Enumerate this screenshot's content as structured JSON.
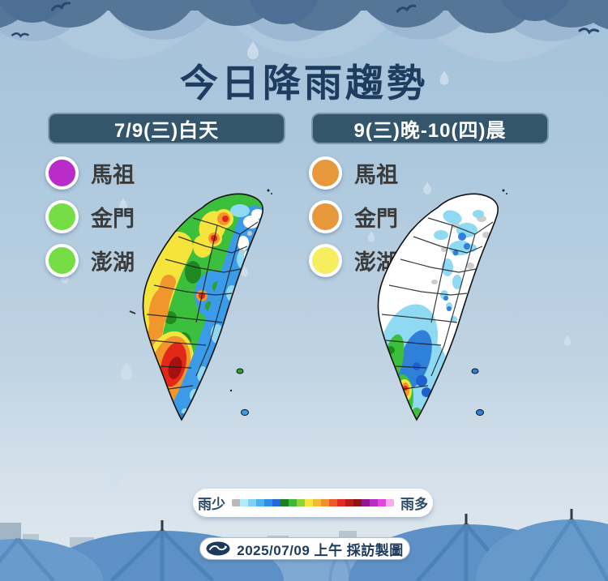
{
  "title": "今日降雨趨勢",
  "panels": [
    {
      "header": "7/9(三)白天",
      "legend": [
        {
          "name": "馬祖",
          "color": "#b92cc9"
        },
        {
          "name": "金門",
          "color": "#76dd45"
        },
        {
          "name": "澎湖",
          "color": "#76dd45"
        }
      ]
    },
    {
      "header": "9(三)晚-10(四)晨",
      "legend": [
        {
          "name": "馬祖",
          "color": "#e7983a"
        },
        {
          "name": "金門",
          "color": "#e7983a"
        },
        {
          "name": "澎湖",
          "color": "#f6ee5e"
        }
      ]
    }
  ],
  "scale": {
    "left_label": "雨少",
    "right_label": "雨多",
    "colors": [
      "#b9b9b9",
      "#b3e9f8",
      "#7fd0f2",
      "#4fb3ea",
      "#2f8fe0",
      "#2766d8",
      "#1e7e22",
      "#3cb83c",
      "#8fd23a",
      "#f5e43c",
      "#f2bb35",
      "#ee9130",
      "#ea5a2b",
      "#e02a22",
      "#b81b1b",
      "#921313",
      "#8f1a90",
      "#b52cc0",
      "#e246e0",
      "#f9a8ec"
    ]
  },
  "footer": {
    "credit": "2025/07/09 上午 採訪製圖",
    "logo": "cwa-weather-logo"
  },
  "theme": {
    "header_bg": "#33566d",
    "title_color": "#1d3c60",
    "rain_low_color": "#b9b9b9",
    "rain_high_color": "#f9a8ec"
  }
}
